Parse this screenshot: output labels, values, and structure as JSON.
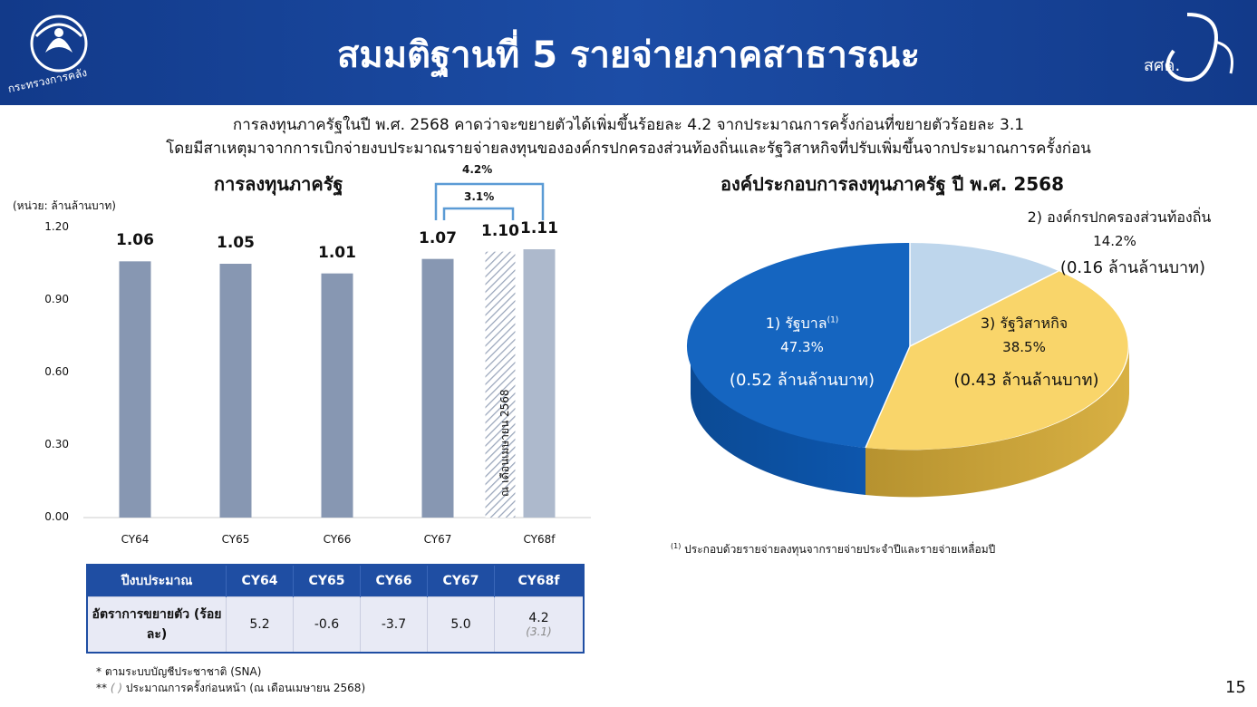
{
  "header": {
    "title": "สมมติฐานที่ 5  รายจ่ายภาคสาธารณะ",
    "left_logo_text": "กระทรวงการคลัง",
    "right_logo_text": "สศค."
  },
  "intro": {
    "line1": "การลงทุนภาครัฐในปี พ.ศ. 2568 คาดว่าจะขยายตัวได้เพิ่มขึ้นร้อยละ 4.2 จากประมาณการครั้งก่อนที่ขยายตัวร้อยละ 3.1",
    "line2": "โดยมีสาเหตุมาจากการเบิกจ่ายงบประมาณรายจ่ายลงทุนขององค์กรปกครองส่วนท้องถิ่นและรัฐวิสาหกิจที่ปรับเพิ่มขึ้นจากประมาณการครั้งก่อน"
  },
  "chart_data": [
    {
      "type": "bar",
      "title": "การลงทุนภาครัฐ",
      "unit_label": "(หน่วย: ล้านล้านบาท)",
      "categories": [
        "CY64",
        "CY65",
        "CY66",
        "CY67",
        "",
        "CY68f"
      ],
      "values": [
        1.06,
        1.05,
        1.01,
        1.07,
        1.1,
        1.11
      ],
      "value_labels": [
        "1.06",
        "1.05",
        "1.01",
        "1.07",
        "1.10",
        "1.11"
      ],
      "yticks": [
        "0.00",
        "0.30",
        "0.60",
        "0.90",
        "1.20"
      ],
      "ylim": [
        0,
        1.2
      ],
      "colors": {
        "actual": "#8797b2",
        "forecast": "#adb9cc",
        "hatched": "#9aa6bb"
      },
      "annotations": {
        "growth_total": "4.2%",
        "growth_previous": "3.1%",
        "rotated_note": "ณ เดือนเมษายน 2568"
      },
      "grid": false
    },
    {
      "type": "pie",
      "title": "องค์ประกอบการลงทุนภาครัฐ ปี พ.ศ. 2568",
      "slices": [
        {
          "name": "1) รัฐบาล",
          "superscript": "(1)",
          "value": 47.3,
          "percent_label": "47.3%",
          "amount": "(0.52 ล้านล้านบาท)",
          "color": "#1565c0"
        },
        {
          "name": "3) รัฐวิสาหกิจ",
          "value": 38.5,
          "percent_label": "38.5%",
          "amount": "(0.43 ล้านล้านบาท)",
          "color": "#f9d56a"
        },
        {
          "name": "2) องค์กรปกครองส่วนท้องถิ่น",
          "value": 14.2,
          "percent_label": "14.2%",
          "amount": "(0.16 ล้านล้านบาท)",
          "color": "#bed6ec"
        }
      ]
    }
  ],
  "pie_footnote": {
    "marker": "(1)",
    "text": "ประกอบด้วยรายจ่ายลงทุนจากรายจ่ายประจำปีและรายจ่ายเหลื่อมปี"
  },
  "growth_table": {
    "headers": [
      "ปีงบประมาณ",
      "CY64",
      "CY65",
      "CY66",
      "CY67",
      "CY68f"
    ],
    "row_label": "อัตราการขยายตัว (ร้อยละ)",
    "values": [
      "5.2",
      "-0.6",
      "-3.7",
      "5.0",
      "4.2"
    ],
    "sub_value": "(3.1)"
  },
  "footnotes": {
    "note1": "* ตามระบบบัญชีประชาชาติ (SNA)",
    "note2_prefix": "**",
    "note2_marker": "( )",
    "note2_text": "ประมาณการครั้งก่อนหน้า (ณ เดือนเมษายน 2568)"
  },
  "page_number": "15"
}
